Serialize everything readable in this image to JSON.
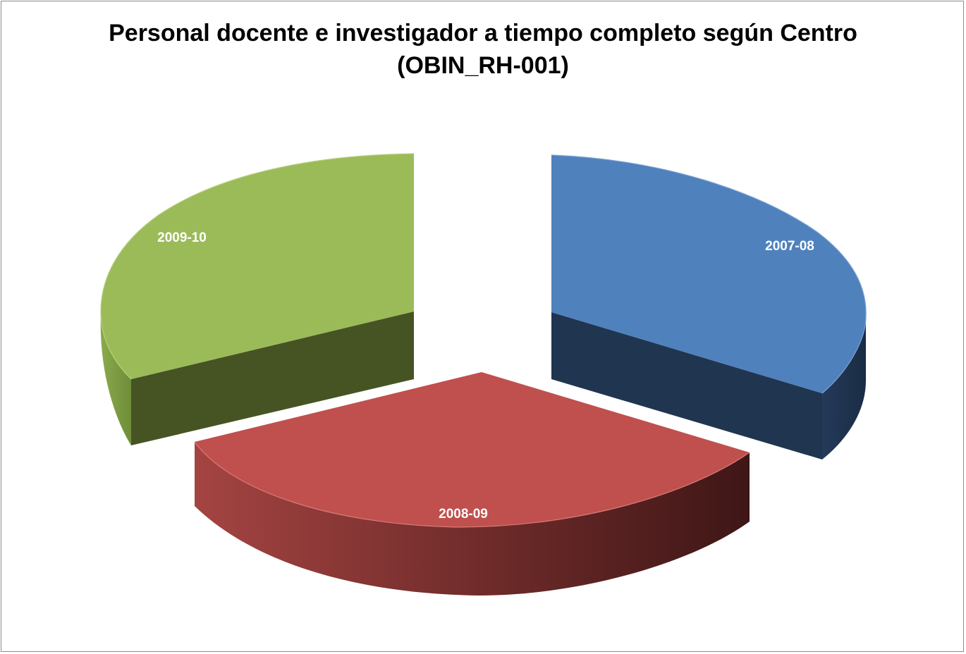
{
  "chart_data": {
    "type": "pie",
    "title_lines": [
      "Personal docente e investigador a tiempo completo según Centro",
      "(OBIN_RH-001)"
    ],
    "categories": [
      "2007-08",
      "2008-09",
      "2009-10"
    ],
    "values": [
      1,
      1,
      1
    ],
    "colors": {
      "2007-08": {
        "top": "#4f81bd",
        "side": "#1f3350",
        "cut": "#203550"
      },
      "2008-09": {
        "top": "#c0504d",
        "side_dark": "#4a1b1b",
        "side_light": "#a04240"
      },
      "2009-10": {
        "top": "#9bbb59",
        "side": "#7a9a42",
        "cut": "#465424"
      }
    },
    "legend": "none",
    "style": "3d-exploded"
  }
}
